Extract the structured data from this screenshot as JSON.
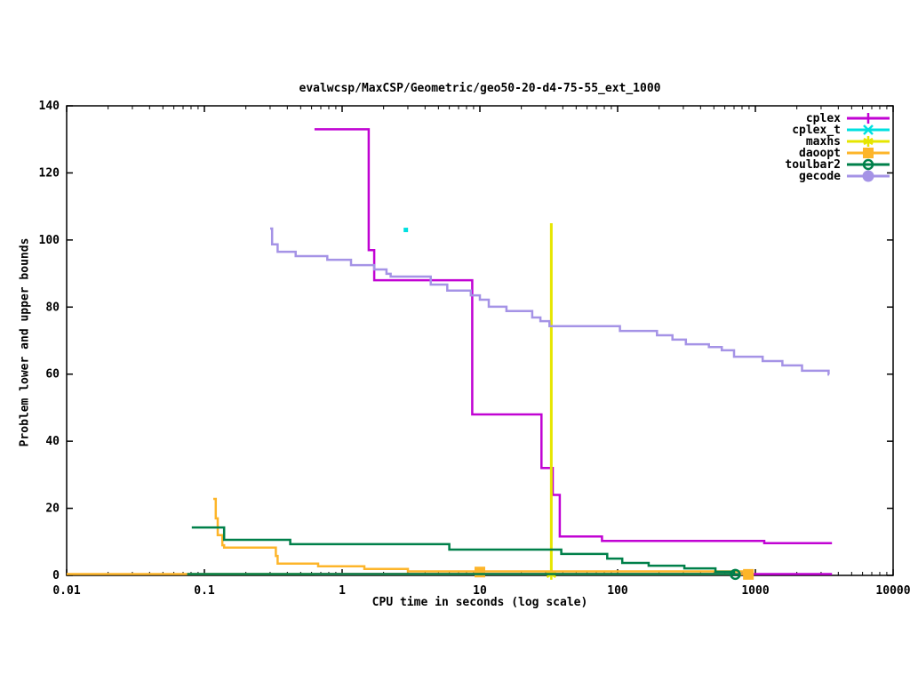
{
  "chart_data": {
    "type": "line",
    "title": "evalwcsp/MaxCSP/Geometric/geo50-20-d4-75-55_ext_1000",
    "xlabel": "CPU time in seconds (log scale)",
    "ylabel": "Problem lower and upper bounds",
    "x_scale": "log",
    "xlim": [
      0.01,
      10000
    ],
    "ylim": [
      0,
      140
    ],
    "x_ticks": [
      {
        "v": 0.01,
        "label": "0.01"
      },
      {
        "v": 0.1,
        "label": "0.1"
      },
      {
        "v": 1,
        "label": "1"
      },
      {
        "v": 10,
        "label": "10"
      },
      {
        "v": 100,
        "label": "100"
      },
      {
        "v": 1000,
        "label": "1000"
      },
      {
        "v": 10000,
        "label": "10000"
      }
    ],
    "y_ticks": [
      0,
      20,
      40,
      60,
      80,
      100,
      120,
      140
    ],
    "grid": false,
    "legend_position": "top-right-inside",
    "background": "#ffffff",
    "border_color": "#000000",
    "series": [
      {
        "name": "cplex",
        "color": "#c103d3",
        "marker": "plus",
        "upper_steps": [
          [
            0.63,
            133
          ],
          [
            1.56,
            97
          ],
          [
            1.71,
            88
          ],
          [
            8.8,
            48
          ],
          [
            28,
            32
          ],
          [
            33.8,
            24
          ],
          [
            38,
            11.6
          ],
          [
            77,
            10.3
          ],
          [
            1160,
            9.6
          ]
        ],
        "upper_end": 3600,
        "lower_steps": [
          [
            0.63,
            0
          ]
        ],
        "lower_end": 3600,
        "markers": []
      },
      {
        "name": "cplex_t",
        "color": "#00e0e0",
        "marker": "cross",
        "points": [
          [
            2.9,
            103
          ]
        ],
        "markers": []
      },
      {
        "name": "maxhs",
        "color": "#e6e600",
        "marker": "star",
        "segments": [
          [
            [
              33,
              105
            ],
            [
              33,
              0
            ]
          ]
        ],
        "markers": [
          [
            33,
            0.3
          ]
        ]
      },
      {
        "name": "daoopt",
        "color": "#fdb52a",
        "marker": "square",
        "upper_steps": [
          [
            0.116,
            22.8
          ],
          [
            0.121,
            17
          ],
          [
            0.125,
            12
          ],
          [
            0.135,
            9
          ],
          [
            0.139,
            8.3
          ],
          [
            0.33,
            5.8
          ],
          [
            0.34,
            3.5
          ],
          [
            0.67,
            2.7
          ],
          [
            1.45,
            1.9
          ],
          [
            3,
            1.2
          ],
          [
            880,
            0.2
          ]
        ],
        "upper_end": 890,
        "lower_steps": [
          [
            0.01,
            0
          ]
        ],
        "lower_end": 890,
        "markers": [
          [
            10,
            1
          ],
          [
            890,
            0.3
          ]
        ]
      },
      {
        "name": "toulbar2",
        "color": "#00804a",
        "marker": "circle-dash",
        "upper_steps": [
          [
            0.081,
            14.3
          ],
          [
            0.139,
            10.6
          ],
          [
            0.42,
            9.3
          ],
          [
            6,
            7.7
          ],
          [
            39,
            6.4
          ],
          [
            84,
            5.0
          ],
          [
            108,
            3.7
          ],
          [
            168,
            2.9
          ],
          [
            305,
            2.1
          ],
          [
            513,
            1.1
          ],
          [
            700,
            0.3
          ]
        ],
        "upper_end": 715,
        "lower_steps": [
          [
            0.075,
            0
          ]
        ],
        "lower_end": 715,
        "markers": [
          [
            715,
            0.3
          ]
        ]
      },
      {
        "name": "gecode",
        "color": "#a593e6",
        "marker": "circle",
        "upper_steps": [
          [
            0.3,
            103.4
          ],
          [
            0.31,
            98.7
          ],
          [
            0.34,
            96.5
          ],
          [
            0.46,
            95.2
          ],
          [
            0.78,
            94.1
          ],
          [
            1.16,
            92.5
          ],
          [
            1.71,
            91.2
          ],
          [
            2.1,
            89.9
          ],
          [
            2.25,
            89.1
          ],
          [
            4.4,
            86.7
          ],
          [
            5.8,
            84.9
          ],
          [
            8.6,
            83.5
          ],
          [
            10,
            82.2
          ],
          [
            11.6,
            80.1
          ],
          [
            15.6,
            78.8
          ],
          [
            24,
            76.9
          ],
          [
            27.5,
            75.8
          ],
          [
            32,
            74.3
          ],
          [
            104,
            72.9
          ],
          [
            193,
            71.6
          ],
          [
            250,
            70.3
          ],
          [
            313,
            68.9
          ],
          [
            460,
            68.1
          ],
          [
            570,
            67.1
          ],
          [
            700,
            65.2
          ],
          [
            1130,
            63.9
          ],
          [
            1570,
            62.6
          ],
          [
            2180,
            61.0
          ],
          [
            3400,
            59.9
          ]
        ],
        "upper_end": 3430,
        "markers": []
      }
    ]
  }
}
